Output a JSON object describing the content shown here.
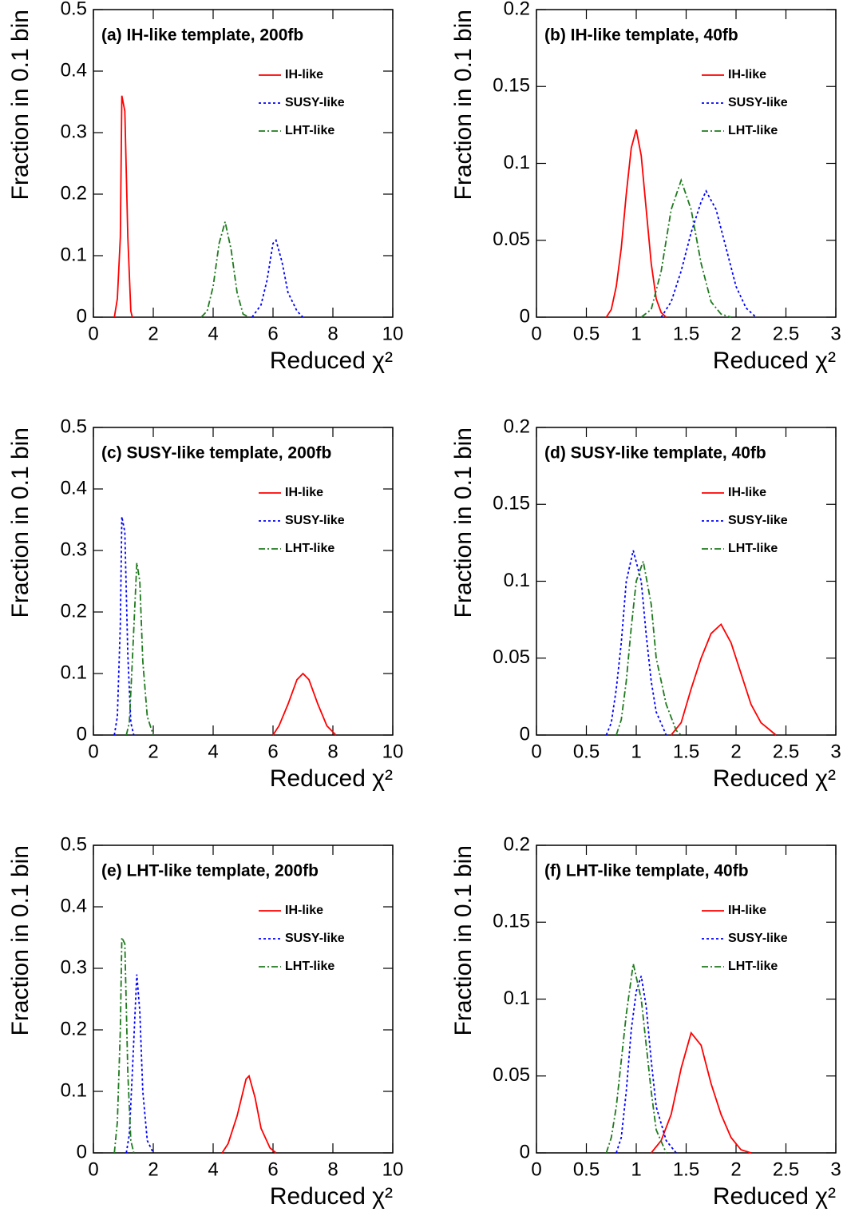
{
  "chart_data": [
    {
      "type": "line",
      "title": "(a) IH-like template, 200fb",
      "xlabel": "Reduced χ²",
      "ylabel": "Fraction in 0.1 bin",
      "xlim": [
        0,
        10
      ],
      "ylim": [
        0,
        0.5
      ],
      "xticks": [
        0,
        2,
        4,
        6,
        8,
        10
      ],
      "yticks": [
        0,
        0.1,
        0.2,
        0.3,
        0.4,
        0.5
      ],
      "series": [
        {
          "name": "IH-like",
          "color": "#ff0000",
          "dash": "solid",
          "x": [
            0.7,
            0.8,
            0.9,
            0.95,
            1.05,
            1.15,
            1.25,
            1.3
          ],
          "values": [
            0,
            0.03,
            0.13,
            0.36,
            0.335,
            0.13,
            0.01,
            0
          ]
        },
        {
          "name": "SUSY-like",
          "color": "#0000ff",
          "dash": "dotted",
          "x": [
            5.3,
            5.6,
            5.8,
            6.0,
            6.1,
            6.3,
            6.5,
            6.8,
            7.0
          ],
          "values": [
            0,
            0.02,
            0.06,
            0.12,
            0.125,
            0.09,
            0.04,
            0.01,
            0
          ]
        },
        {
          "name": "LHT-like",
          "color": "#1f7a1f",
          "dash": "dashdot",
          "x": [
            3.6,
            3.8,
            4.0,
            4.2,
            4.4,
            4.6,
            4.8,
            5.0,
            5.2
          ],
          "values": [
            0,
            0.01,
            0.05,
            0.12,
            0.155,
            0.11,
            0.04,
            0.005,
            0
          ]
        }
      ]
    },
    {
      "type": "line",
      "title": "(b) IH-like template, 40fb",
      "xlabel": "Reduced χ²",
      "ylabel": "Fraction in 0.1 bin",
      "xlim": [
        0,
        3
      ],
      "ylim": [
        0,
        0.2
      ],
      "xticks": [
        0,
        0.5,
        1,
        1.5,
        2,
        2.5,
        3
      ],
      "yticks": [
        0,
        0.05,
        0.1,
        0.15,
        0.2
      ],
      "series": [
        {
          "name": "IH-like",
          "color": "#ff0000",
          "dash": "solid",
          "x": [
            0.7,
            0.75,
            0.8,
            0.85,
            0.9,
            0.95,
            1.0,
            1.05,
            1.1,
            1.15,
            1.2,
            1.25,
            1.3
          ],
          "values": [
            0,
            0.005,
            0.02,
            0.045,
            0.08,
            0.11,
            0.122,
            0.105,
            0.07,
            0.035,
            0.012,
            0.003,
            0
          ]
        },
        {
          "name": "SUSY-like",
          "color": "#0000ff",
          "dash": "dotted",
          "x": [
            1.25,
            1.35,
            1.45,
            1.55,
            1.65,
            1.7,
            1.8,
            1.9,
            2.0,
            2.1,
            2.2
          ],
          "values": [
            0,
            0.01,
            0.03,
            0.055,
            0.075,
            0.082,
            0.07,
            0.045,
            0.02,
            0.006,
            0
          ]
        },
        {
          "name": "LHT-like",
          "color": "#1f7a1f",
          "dash": "dashdot",
          "x": [
            1.05,
            1.15,
            1.25,
            1.35,
            1.45,
            1.55,
            1.65,
            1.75,
            1.85,
            1.95
          ],
          "values": [
            0,
            0.005,
            0.03,
            0.07,
            0.089,
            0.07,
            0.035,
            0.01,
            0.002,
            0
          ]
        }
      ]
    },
    {
      "type": "line",
      "title": "(c) SUSY-like template, 200fb",
      "xlabel": "Reduced χ²",
      "ylabel": "Fraction in 0.1 bin",
      "xlim": [
        0,
        10
      ],
      "ylim": [
        0,
        0.5
      ],
      "xticks": [
        0,
        2,
        4,
        6,
        8,
        10
      ],
      "yticks": [
        0,
        0.1,
        0.2,
        0.3,
        0.4,
        0.5
      ],
      "series": [
        {
          "name": "IH-like",
          "color": "#ff0000",
          "dash": "solid",
          "x": [
            6.0,
            6.2,
            6.5,
            6.8,
            7.0,
            7.2,
            7.5,
            7.8,
            8.1
          ],
          "values": [
            0,
            0.015,
            0.05,
            0.09,
            0.1,
            0.09,
            0.05,
            0.015,
            0
          ]
        },
        {
          "name": "SUSY-like",
          "color": "#0000ff",
          "dash": "dotted",
          "x": [
            0.7,
            0.8,
            0.9,
            0.95,
            1.05,
            1.15,
            1.25,
            1.35
          ],
          "values": [
            0,
            0.03,
            0.18,
            0.355,
            0.33,
            0.13,
            0.02,
            0
          ]
        },
        {
          "name": "LHT-like",
          "color": "#1f7a1f",
          "dash": "dashdot",
          "x": [
            1.1,
            1.2,
            1.3,
            1.45,
            1.55,
            1.65,
            1.8,
            2.0
          ],
          "values": [
            0,
            0.02,
            0.12,
            0.28,
            0.25,
            0.12,
            0.03,
            0
          ]
        }
      ]
    },
    {
      "type": "line",
      "title": "(d) SUSY-like template, 40fb",
      "xlabel": "Reduced χ²",
      "ylabel": "Fraction in 0.1 bin",
      "xlim": [
        0,
        3
      ],
      "ylim": [
        0,
        0.2
      ],
      "xticks": [
        0,
        0.5,
        1,
        1.5,
        2,
        2.5,
        3
      ],
      "yticks": [
        0,
        0.05,
        0.1,
        0.15,
        0.2
      ],
      "series": [
        {
          "name": "IH-like",
          "color": "#ff0000",
          "dash": "solid",
          "x": [
            1.35,
            1.45,
            1.55,
            1.65,
            1.75,
            1.85,
            1.95,
            2.05,
            2.15,
            2.25,
            2.4
          ],
          "values": [
            0,
            0.008,
            0.03,
            0.05,
            0.066,
            0.072,
            0.06,
            0.04,
            0.02,
            0.008,
            0
          ]
        },
        {
          "name": "SUSY-like",
          "color": "#0000ff",
          "dash": "dotted",
          "x": [
            0.7,
            0.75,
            0.8,
            0.85,
            0.9,
            0.97,
            1.05,
            1.1,
            1.15,
            1.2,
            1.3
          ],
          "values": [
            0,
            0.008,
            0.03,
            0.06,
            0.1,
            0.12,
            0.1,
            0.065,
            0.035,
            0.015,
            0
          ]
        },
        {
          "name": "LHT-like",
          "color": "#1f7a1f",
          "dash": "dashdot",
          "x": [
            0.8,
            0.85,
            0.9,
            0.95,
            1.0,
            1.07,
            1.15,
            1.2,
            1.3,
            1.4,
            1.45
          ],
          "values": [
            0,
            0.01,
            0.035,
            0.07,
            0.1,
            0.113,
            0.085,
            0.05,
            0.02,
            0.003,
            0
          ]
        }
      ]
    },
    {
      "type": "line",
      "title": "(e) LHT-like template, 200fb",
      "xlabel": "Reduced χ²",
      "ylabel": "Fraction in 0.1 bin",
      "xlim": [
        0,
        10
      ],
      "ylim": [
        0,
        0.5
      ],
      "xticks": [
        0,
        2,
        4,
        6,
        8,
        10
      ],
      "yticks": [
        0,
        0.1,
        0.2,
        0.3,
        0.4,
        0.5
      ],
      "series": [
        {
          "name": "IH-like",
          "color": "#ff0000",
          "dash": "solid",
          "x": [
            4.3,
            4.5,
            4.8,
            5.1,
            5.2,
            5.4,
            5.6,
            5.9,
            6.1
          ],
          "values": [
            0,
            0.015,
            0.06,
            0.12,
            0.125,
            0.09,
            0.04,
            0.008,
            0
          ]
        },
        {
          "name": "SUSY-like",
          "color": "#0000ff",
          "dash": "dotted",
          "x": [
            1.1,
            1.2,
            1.3,
            1.45,
            1.55,
            1.65,
            1.8,
            2.0
          ],
          "values": [
            0,
            0.03,
            0.13,
            0.29,
            0.23,
            0.1,
            0.02,
            0
          ]
        },
        {
          "name": "LHT-like",
          "color": "#1f7a1f",
          "dash": "dashdot",
          "x": [
            0.7,
            0.8,
            0.9,
            0.95,
            1.05,
            1.15,
            1.25,
            1.35
          ],
          "values": [
            0,
            0.05,
            0.2,
            0.35,
            0.34,
            0.13,
            0.02,
            0
          ]
        }
      ]
    },
    {
      "type": "line",
      "title": "(f) LHT-like template, 40fb",
      "xlabel": "Reduced χ²",
      "ylabel": "Fraction in 0.1 bin",
      "xlim": [
        0,
        3
      ],
      "ylim": [
        0,
        0.2
      ],
      "xticks": [
        0,
        0.5,
        1,
        1.5,
        2,
        2.5,
        3
      ],
      "yticks": [
        0,
        0.05,
        0.1,
        0.15,
        0.2
      ],
      "series": [
        {
          "name": "IH-like",
          "color": "#ff0000",
          "dash": "solid",
          "x": [
            1.15,
            1.25,
            1.35,
            1.45,
            1.55,
            1.65,
            1.75,
            1.85,
            1.95,
            2.05,
            2.15
          ],
          "values": [
            0,
            0.008,
            0.025,
            0.055,
            0.078,
            0.07,
            0.045,
            0.025,
            0.01,
            0.002,
            0
          ]
        },
        {
          "name": "SUSY-like",
          "color": "#0000ff",
          "dash": "dotted",
          "x": [
            0.8,
            0.85,
            0.9,
            0.95,
            1.0,
            1.05,
            1.1,
            1.15,
            1.2,
            1.3,
            1.4
          ],
          "values": [
            0,
            0.01,
            0.04,
            0.08,
            0.105,
            0.115,
            0.095,
            0.06,
            0.03,
            0.008,
            0
          ]
        },
        {
          "name": "LHT-like",
          "color": "#1f7a1f",
          "dash": "dashdot",
          "x": [
            0.7,
            0.75,
            0.8,
            0.85,
            0.9,
            0.97,
            1.05,
            1.1,
            1.15,
            1.2,
            1.3
          ],
          "values": [
            0,
            0.01,
            0.03,
            0.06,
            0.09,
            0.123,
            0.1,
            0.07,
            0.04,
            0.015,
            0
          ]
        }
      ]
    }
  ]
}
